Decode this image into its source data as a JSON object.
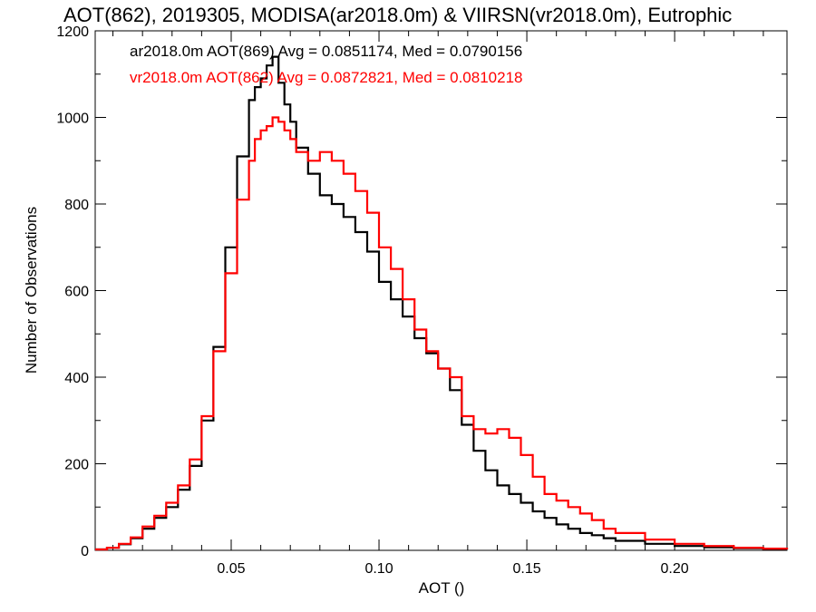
{
  "chart_data": {
    "type": "line",
    "title": "AOT(862), 2019305, MODISA(ar2018.0m) & VIIRSN(vr2018.0m), Eutrophic",
    "xlabel": "AOT ()",
    "ylabel": "Number of Observations",
    "xlim": [
      0.004,
      0.238
    ],
    "ylim": [
      0,
      1200
    ],
    "xticks": [
      0.05,
      0.1,
      0.15,
      0.2
    ],
    "xtick_labels": [
      "0.05",
      "0.10",
      "0.15",
      "0.20"
    ],
    "yticks": [
      0,
      200,
      400,
      600,
      800,
      1000,
      1200
    ],
    "ytick_labels": [
      "0",
      "200",
      "400",
      "600",
      "800",
      "1000",
      "1200"
    ],
    "grid": false,
    "legend": "top-left",
    "series": [
      {
        "name": "ar2018.0m AOT(869) Avg = 0.0851174, Med = 0.0790156",
        "color": "#000000",
        "x": [
          0.004,
          0.008,
          0.012,
          0.016,
          0.02,
          0.024,
          0.028,
          0.032,
          0.036,
          0.04,
          0.044,
          0.048,
          0.052,
          0.056,
          0.058,
          0.06,
          0.062,
          0.064,
          0.066,
          0.068,
          0.07,
          0.072,
          0.076,
          0.08,
          0.084,
          0.088,
          0.092,
          0.096,
          0.1,
          0.104,
          0.108,
          0.112,
          0.116,
          0.12,
          0.124,
          0.128,
          0.132,
          0.136,
          0.14,
          0.144,
          0.148,
          0.152,
          0.156,
          0.16,
          0.164,
          0.168,
          0.172,
          0.176,
          0.18,
          0.19,
          0.2,
          0.21,
          0.22,
          0.23,
          0.238
        ],
        "y": [
          2,
          6,
          14,
          28,
          50,
          75,
          100,
          140,
          195,
          300,
          470,
          700,
          910,
          1040,
          1070,
          1090,
          1120,
          1140,
          1080,
          1030,
          990,
          930,
          870,
          820,
          800,
          770,
          735,
          690,
          620,
          580,
          540,
          490,
          455,
          420,
          370,
          290,
          230,
          185,
          150,
          130,
          110,
          90,
          75,
          60,
          50,
          40,
          35,
          28,
          22,
          15,
          10,
          7,
          5,
          3,
          2
        ]
      },
      {
        "name": "vr2018.0m AOT(862) Avg = 0.0872821, Med = 0.0810218",
        "color": "#ff0000",
        "x": [
          0.004,
          0.008,
          0.012,
          0.016,
          0.02,
          0.024,
          0.028,
          0.032,
          0.036,
          0.04,
          0.044,
          0.048,
          0.052,
          0.056,
          0.058,
          0.06,
          0.062,
          0.064,
          0.066,
          0.068,
          0.07,
          0.072,
          0.076,
          0.08,
          0.084,
          0.088,
          0.092,
          0.096,
          0.1,
          0.104,
          0.108,
          0.112,
          0.116,
          0.12,
          0.124,
          0.128,
          0.132,
          0.136,
          0.14,
          0.144,
          0.148,
          0.152,
          0.156,
          0.16,
          0.164,
          0.168,
          0.172,
          0.176,
          0.18,
          0.19,
          0.2,
          0.21,
          0.22,
          0.23,
          0.238
        ],
        "y": [
          2,
          6,
          15,
          30,
          55,
          80,
          110,
          150,
          210,
          310,
          460,
          640,
          810,
          900,
          950,
          970,
          980,
          1000,
          990,
          970,
          950,
          920,
          900,
          920,
          900,
          870,
          830,
          780,
          700,
          650,
          580,
          510,
          460,
          420,
          400,
          310,
          280,
          270,
          280,
          260,
          220,
          170,
          130,
          115,
          100,
          85,
          70,
          50,
          40,
          25,
          15,
          10,
          6,
          4,
          2
        ]
      }
    ]
  }
}
